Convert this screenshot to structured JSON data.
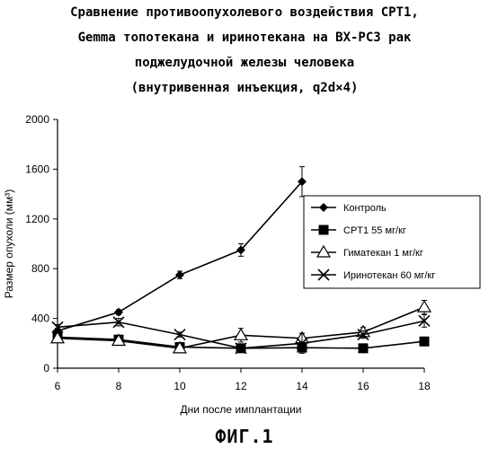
{
  "title_lines": [
    "Сравнение противоопухолевого воздействия CPT1,",
    "Gemma топотекана и иринотекана на BX-PC3 рак",
    "поджелудочной железы человека",
    "(внутривенная инъекция, q2d×4)"
  ],
  "caption": "ФИГ.1",
  "chart_data": {
    "type": "line",
    "xlabel": "Дни после имплантации",
    "ylabel": "Размер опухоли (мм³)",
    "xlim": [
      6,
      18
    ],
    "ylim": [
      0,
      2000
    ],
    "xticks": [
      "6",
      "8",
      "10",
      "12",
      "14",
      "16",
      "18"
    ],
    "yticks": [
      "0",
      "400",
      "800",
      "1200",
      "1600",
      "2000"
    ],
    "grid": false,
    "legend_position": "right",
    "series": [
      {
        "name": "Контроль",
        "marker": "diamond",
        "x": [
          6,
          8,
          10,
          12,
          14
        ],
        "y": [
          300,
          450,
          750,
          950,
          1500
        ],
        "err": [
          20,
          20,
          30,
          50,
          120
        ]
      },
      {
        "name": "CPT1 55 мг/кг",
        "marker": "square",
        "x": [
          6,
          8,
          10,
          12,
          14,
          16,
          18
        ],
        "y": [
          250,
          230,
          170,
          160,
          165,
          160,
          215
        ],
        "err": [
          20,
          20,
          15,
          15,
          15,
          15,
          20
        ]
      },
      {
        "name": "Гиматекан 1 мг/кг",
        "marker": "triangle",
        "x": [
          6,
          8,
          10,
          12,
          14,
          16,
          18
        ],
        "y": [
          240,
          220,
          160,
          265,
          240,
          290,
          490
        ],
        "err": [
          20,
          25,
          20,
          55,
          40,
          40,
          55
        ]
      },
      {
        "name": "Иринотекан 60 мг/кг",
        "marker": "x",
        "x": [
          6,
          8,
          10,
          12,
          14,
          16,
          18
        ],
        "y": [
          330,
          370,
          270,
          160,
          200,
          270,
          380
        ],
        "err": [
          20,
          30,
          20,
          15,
          80,
          30,
          50
        ]
      }
    ]
  }
}
